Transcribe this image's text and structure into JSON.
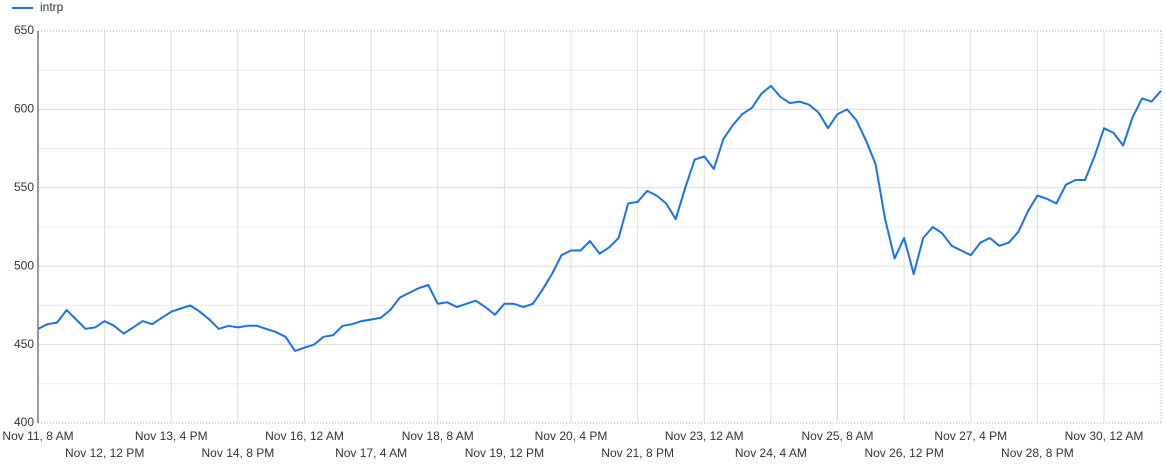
{
  "chart_data": {
    "type": "line",
    "categories": [
      "Nov 11, 8 AM",
      null,
      null,
      null,
      null,
      null,
      null,
      "Nov 12, 12 PM",
      null,
      null,
      null,
      null,
      null,
      null,
      "Nov 13, 4 PM",
      null,
      null,
      null,
      null,
      null,
      null,
      "Nov 14, 8 PM",
      null,
      null,
      null,
      null,
      null,
      null,
      "Nov 16, 12 AM",
      null,
      null,
      null,
      null,
      null,
      null,
      "Nov 17, 4 AM",
      null,
      null,
      null,
      null,
      null,
      null,
      "Nov 18, 8 AM",
      null,
      null,
      null,
      null,
      null,
      null,
      "Nov 19, 12 PM",
      null,
      null,
      null,
      null,
      null,
      null,
      "Nov 20, 4 PM",
      null,
      null,
      null,
      null,
      null,
      null,
      "Nov 21, 8 PM",
      null,
      null,
      null,
      null,
      null,
      null,
      "Nov 23, 12 AM",
      null,
      null,
      null,
      null,
      null,
      null,
      "Nov 24, 4 AM",
      null,
      null,
      null,
      null,
      null,
      null,
      "Nov 25, 8 AM",
      null,
      null,
      null,
      null,
      null,
      null,
      "Nov 26, 12 PM",
      null,
      null,
      null,
      null,
      null,
      null,
      "Nov 27, 4 PM",
      null,
      null,
      null,
      null,
      null,
      null,
      "Nov 28, 8 PM",
      null,
      null,
      null,
      null,
      null,
      null,
      "Nov 30, 12 AM",
      null,
      null,
      null,
      null,
      null,
      null
    ],
    "series": [
      {
        "name": "intrp",
        "color": "#1a73e8",
        "values": [
          460,
          463,
          464,
          472,
          466,
          460,
          461,
          465,
          462,
          457,
          461,
          465,
          463,
          467,
          471,
          473,
          475,
          471,
          466,
          460,
          462,
          461,
          462,
          462,
          460,
          458,
          455,
          446,
          448,
          450,
          455,
          456,
          462,
          463,
          465,
          466,
          467,
          472,
          480,
          483,
          486,
          488,
          476,
          477,
          474,
          476,
          478,
          474,
          469,
          476,
          476,
          474,
          476,
          485,
          495,
          507,
          510,
          510,
          516,
          508,
          512,
          518,
          540,
          541,
          548,
          545,
          540,
          530,
          550,
          568,
          570,
          562,
          581,
          590,
          597,
          601,
          610,
          615,
          608,
          604,
          605,
          603,
          598,
          588,
          597,
          600,
          593,
          580,
          565,
          530,
          505,
          518,
          495,
          518,
          525,
          521,
          513,
          510,
          507,
          515,
          518,
          513,
          515,
          522,
          535,
          545,
          543,
          540,
          552,
          555,
          555,
          570,
          588,
          585,
          577,
          595,
          607,
          605,
          612
        ]
      }
    ],
    "ylim": [
      400,
      650
    ],
    "yticks": [
      400,
      450,
      500,
      550,
      600,
      650
    ],
    "grid": true
  }
}
